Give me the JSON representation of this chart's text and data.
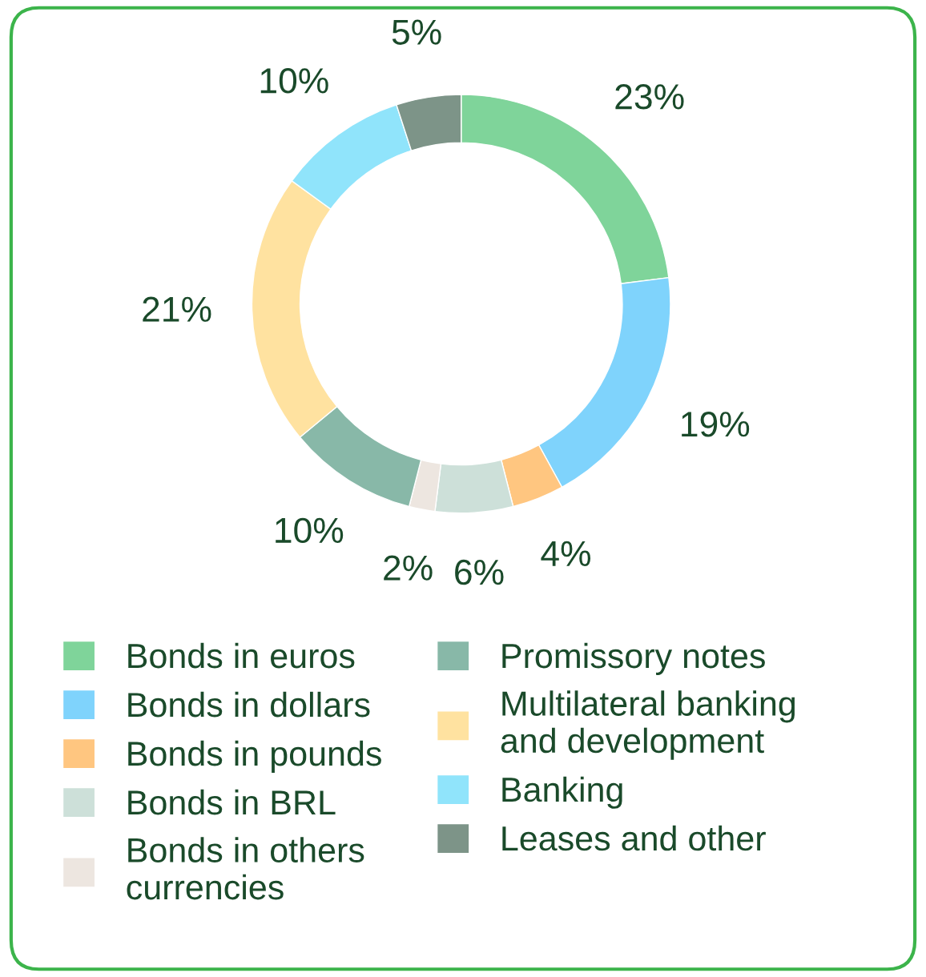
{
  "chart_data": {
    "type": "donut",
    "categories": [
      "Bonds in euros",
      "Bonds in dollars",
      "Bonds in pounds",
      "Bonds in BRL",
      "Bonds in others\ncurrencies",
      "Promissory notes",
      "Multilateral banking\nand development",
      "Banking",
      "Leases and other"
    ],
    "values": [
      23,
      19,
      4,
      6,
      2,
      10,
      21,
      10,
      5
    ],
    "colors": [
      "#7fd49a",
      "#7fd3fc",
      "#ffc680",
      "#cde0d9",
      "#ede6e0",
      "#88b8a8",
      "#ffe2a0",
      "#90e4fb",
      "#7d9488"
    ],
    "value_labels": [
      "23%",
      "19%",
      "4%",
      "6%",
      "2%",
      "10%",
      "21%",
      "10%",
      "5%"
    ],
    "legend": "bottom"
  }
}
